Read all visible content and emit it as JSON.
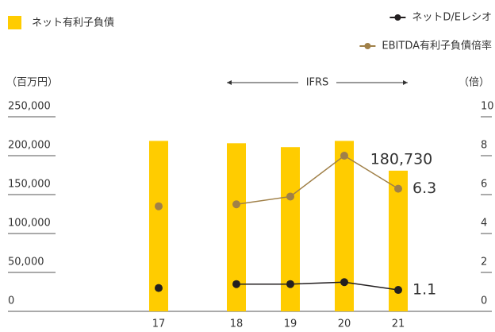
{
  "chart_data": {
    "type": "bar-line",
    "categories": [
      "17",
      "18",
      "19",
      "20",
      "21"
    ],
    "series": [
      {
        "name": "ネット有利子負債",
        "type": "bar",
        "color": "#ffcc00",
        "values": [
          219000,
          216000,
          211000,
          219000,
          180730
        ],
        "value_labels": [
          null,
          null,
          null,
          null,
          "180,730"
        ]
      },
      {
        "name": "ネットD/Eレシオ",
        "type": "line",
        "axis": "y2",
        "color": "#231f20",
        "values": [
          1.2,
          1.4,
          1.4,
          1.5,
          1.1
        ],
        "value_labels": [
          null,
          null,
          null,
          null,
          "1.1"
        ]
      },
      {
        "name": "EBITDA有利子負債倍率",
        "type": "line",
        "axis": "y2",
        "color": "#a08048",
        "values": [
          5.4,
          5.5,
          5.9,
          8.0,
          6.3
        ],
        "value_labels": [
          null,
          null,
          null,
          null,
          "6.3"
        ]
      }
    ],
    "ylabel": "（百万円）",
    "y2label": "（倍）",
    "ylim": [
      0,
      250000
    ],
    "yticks": [
      0,
      {
        "value": 50000,
        "label": "50,000"
      },
      {
        "value": 100000,
        "label": "100,000"
      },
      {
        "value": 150000,
        "label": "150,000"
      },
      {
        "value": 200000,
        "label": "200,000"
      },
      {
        "value": 250000,
        "label": "250,000"
      }
    ],
    "y2lim": [
      0,
      10
    ],
    "y2ticks": [
      0,
      2,
      4,
      6,
      8,
      10
    ],
    "annotations": [
      {
        "text": "IFRS",
        "from": "18",
        "to": "21"
      }
    ]
  }
}
